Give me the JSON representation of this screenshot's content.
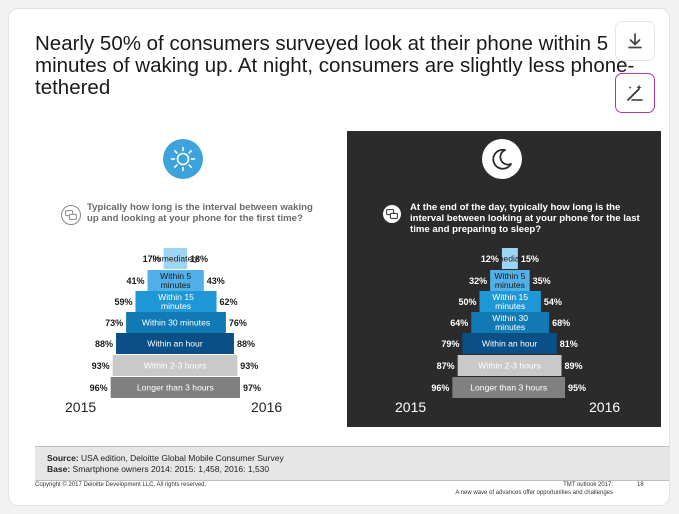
{
  "title": "Nearly 50% of consumers surveyed look at their phone within 5 minutes of waking up. At night, consumers are slightly less phone-tethered",
  "toolbar": {
    "download_icon": "download-icon",
    "edit_icon": "magic-pen-icon"
  },
  "chart_data": [
    {
      "type": "bar",
      "layout": "pyramid",
      "theme": "day",
      "question": "Typically how long is the interval between waking up and looking at your phone for the first time?",
      "categories": [
        "Immediately",
        "Within 5 minutes",
        "Within 15 minutes",
        "Within 30 minutes",
        "Within an hour",
        "Within 2-3 hours",
        "Longer than 3 hours"
      ],
      "series": [
        {
          "name": "2015",
          "values": [
            17,
            41,
            59,
            73,
            88,
            93,
            96
          ],
          "labels": [
            "17%",
            "41%",
            "59%",
            "73%",
            "88%",
            "93%",
            "96%"
          ]
        },
        {
          "name": "2016",
          "values": [
            18,
            43,
            62,
            76,
            88,
            93,
            97
          ],
          "labels": [
            "18%",
            "43%",
            "62%",
            "76%",
            "88%",
            "93%",
            "97%"
          ]
        }
      ],
      "colors": [
        "#9fd4f3",
        "#51b0e8",
        "#1f97d6",
        "#117ab5",
        "#0b4f87",
        "#c9c9c9",
        "#808080"
      ],
      "label_colors": [
        "#1a1a1a",
        "#1a1a1a",
        "#ffffff",
        "#ffffff",
        "#ffffff",
        "#ffffff",
        "#ffffff"
      ]
    },
    {
      "type": "bar",
      "layout": "pyramid",
      "theme": "night",
      "question": "At the end of the day, typically how long is the interval between looking at your phone for the last time and preparing to sleep?",
      "categories": [
        "Immediately",
        "Within 5 minutes",
        "Within 15 minutes",
        "Within 30 minutes",
        "Within an hour",
        "Within 2-3 hours",
        "Longer than 3 hours"
      ],
      "series": [
        {
          "name": "2015",
          "values": [
            12,
            32,
            50,
            64,
            79,
            87,
            96
          ],
          "labels": [
            "12%",
            "32%",
            "50%",
            "64%",
            "79%",
            "87%",
            "96%"
          ]
        },
        {
          "name": "2016",
          "values": [
            15,
            35,
            54,
            68,
            81,
            89,
            95
          ],
          "labels": [
            "15%",
            "35%",
            "54%",
            "68%",
            "81%",
            "89%",
            "95%"
          ]
        }
      ],
      "colors": [
        "#9fd4f3",
        "#51b0e8",
        "#1f97d6",
        "#117ab5",
        "#0b4f87",
        "#c9c9c9",
        "#808080"
      ],
      "label_colors": [
        "#1a1a1a",
        "#1a1a1a",
        "#ffffff",
        "#ffffff",
        "#ffffff",
        "#ffffff",
        "#ffffff"
      ]
    }
  ],
  "footer": {
    "source_label": "Source:",
    "source_text": "USA edition, Deloitte Global Mobile Consumer Survey",
    "base_label": "Base:",
    "base_text": "Smartphone owners 2014: 2015: 1,458, 2016: 1,530"
  },
  "copyright": "Copyright © 2017 Deloitte Development LLC. All rights reserved.",
  "tmt_line1": "TMT outlook 2017:",
  "tmt_line2": "A new wave of advances offer opportunities and challenges",
  "page_number": "18"
}
